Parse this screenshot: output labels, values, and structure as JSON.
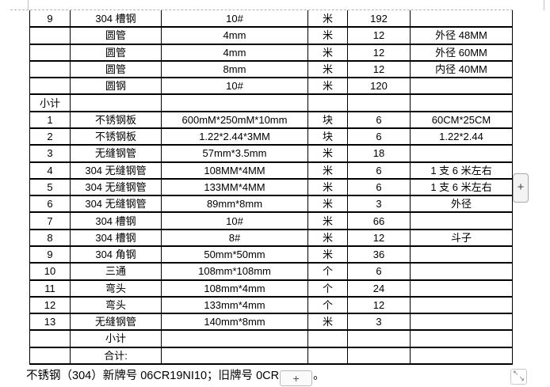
{
  "document": {
    "background": "#ffffff",
    "table_border_color": "#000000",
    "boundary_line_color": "#b3b3b3"
  },
  "table": {
    "rows": [
      [
        "9",
        "304 槽钢",
        "10#",
        "米",
        "192",
        ""
      ],
      [
        "",
        "圆管",
        "4mm",
        "米",
        "12",
        "外径 48MM"
      ],
      [
        "",
        "圆管",
        "4mm",
        "米",
        "12",
        "外径 60MM"
      ],
      [
        "",
        "圆管",
        "8mm",
        "米",
        "12",
        "内径 40MM"
      ],
      [
        "",
        "圆钢",
        "10#",
        "米",
        "120",
        ""
      ],
      [
        "小计",
        "",
        "",
        "",
        "",
        ""
      ],
      [
        "1",
        "不锈钢板",
        "600mM*250mM*10mm",
        "块",
        "6",
        "60CM*25CM"
      ],
      [
        "2",
        "不锈钢板",
        "1.22*2.44*3MM",
        "块",
        "6",
        "1.22*2.44"
      ],
      [
        "3",
        "无缝钢管",
        "57mm*3.5mm",
        "米",
        "18",
        ""
      ],
      [
        "4",
        "304 无缝钢管",
        "108MM*4MM",
        "米",
        "6",
        "1 支 6 米左右"
      ],
      [
        "5",
        "304 无缝钢管",
        "133MM*4MM",
        "米",
        "6",
        "1 支 6 米左右"
      ],
      [
        "6",
        "304 无缝钢管",
        "89mm*8mm",
        "米",
        "3",
        "外径"
      ],
      [
        "7",
        "304 槽钢",
        "10#",
        "米",
        "66",
        ""
      ],
      [
        "8",
        "304 槽钢",
        "8#",
        "米",
        "12",
        "斗子"
      ],
      [
        "9",
        "304 角钢",
        "50mm*50mm",
        "米",
        "36",
        ""
      ],
      [
        "10",
        "三通",
        "108mm*108mm",
        "个",
        "6",
        ""
      ],
      [
        "11",
        "弯头",
        "108mm*4mm",
        "个",
        "24",
        ""
      ],
      [
        "12",
        "弯头",
        "133mm*4mm",
        "个",
        "12",
        ""
      ],
      [
        "13",
        "无缝钢管",
        "140mm*8mm",
        "米",
        "3",
        ""
      ],
      [
        "",
        "小计",
        "",
        "",
        "",
        ""
      ],
      [
        "",
        "合计:",
        "",
        "",
        "",
        ""
      ]
    ]
  },
  "footnote": {
    "before": "不锈钢（304）新牌号 06CR19NI10；旧牌号 0CR",
    "after": "。"
  },
  "controls": {
    "side_add_button": "+",
    "inline_button": "+",
    "resize_nw_arrow": "↖",
    "resize_se_arrow": "↘"
  }
}
